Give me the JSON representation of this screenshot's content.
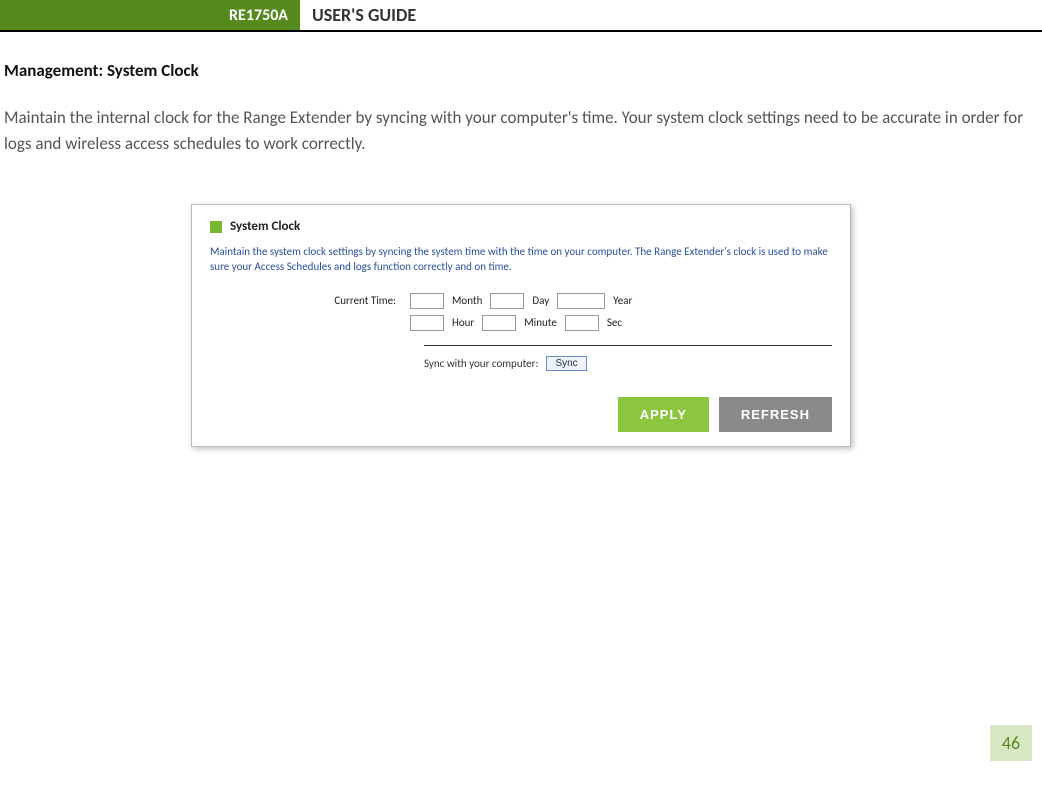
{
  "header": {
    "model": "RE1750A",
    "guide": "USER'S GUIDE"
  },
  "section_title": "Management: System Clock",
  "body_text": "Maintain the internal clock for the Range Extender by syncing with your computer's time. Your system clock settings need to be accurate in order for logs and wireless access schedules to work correctly.",
  "panel": {
    "title": "System Clock",
    "description": "Maintain the system clock settings by syncing the system time with the time on your computer. The Range Extender's clock is used to make sure your Access Schedules and logs function correctly and on time.",
    "current_time_label": "Current Time:",
    "fields": {
      "month_label": "Month",
      "day_label": "Day",
      "year_label": "Year",
      "hour_label": "Hour",
      "minute_label": "Minute",
      "sec_label": "Sec"
    },
    "sync_label": "Sync with your computer:",
    "sync_button": "Sync",
    "apply_button": "APPLY",
    "refresh_button": "REFRESH",
    "colors": {
      "accent_green": "#8cc63f",
      "header_green": "#568a1f",
      "desc_blue": "#2a4fa0",
      "refresh_gray": "#8a8a8a"
    }
  },
  "page_number": "46"
}
